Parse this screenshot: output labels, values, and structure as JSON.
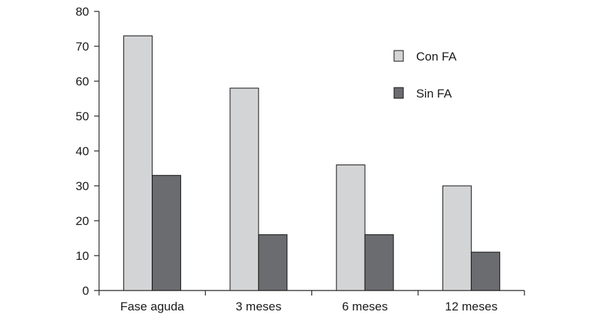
{
  "chart_data": {
    "type": "bar",
    "title": "",
    "xlabel": "",
    "ylabel": "",
    "categories": [
      "Fase aguda",
      "3 meses",
      "6 meses",
      "12 meses"
    ],
    "series": [
      {
        "name": "Con FA",
        "values": [
          73,
          58,
          36,
          30
        ],
        "color": "#d3d4d6"
      },
      {
        "name": "Sin FA",
        "values": [
          33,
          16,
          16,
          11
        ],
        "color": "#6b6c70"
      }
    ],
    "ylim": [
      0,
      80
    ],
    "yticks": [
      "0",
      "10",
      "20",
      "30",
      "40",
      "50",
      "60",
      "70",
      "80"
    ],
    "grid": false,
    "legend_position": "top-right"
  }
}
